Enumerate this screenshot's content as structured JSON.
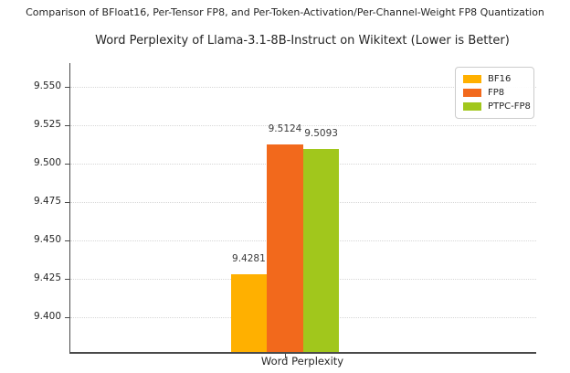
{
  "figure": {
    "suptitle": "Comparison of BFloat16, Per-Tensor FP8, and Per-Token-Activation/Per-Channel-Weight FP8 Quantization"
  },
  "chart_data": {
    "type": "bar",
    "title": "Word Perplexity of Llama-3.1-8B-Instruct on Wikitext (Lower is Better)",
    "suptitle": "Comparison of BFloat16, Per-Tensor FP8, and Per-Token-Activation/Per-Channel-Weight FP8 Quantization",
    "categories": [
      "Word Perplexity"
    ],
    "series": [
      {
        "name": "BF16",
        "values": [
          9.4281
        ],
        "value_label": "9.4281",
        "color": "#FFB000"
      },
      {
        "name": "FP8",
        "values": [
          9.5124
        ],
        "value_label": "9.5124",
        "color": "#F2691C"
      },
      {
        "name": "PTPC-FP8",
        "values": [
          9.5093
        ],
        "value_label": "9.5093",
        "color": "#A1C71C"
      }
    ],
    "xlabel": "Word Perplexity",
    "ylabel": "",
    "ylim": [
      9.3775,
      9.5655
    ],
    "yticks": [
      "9.400",
      "9.425",
      "9.450",
      "9.475",
      "9.500",
      "9.525",
      "9.550"
    ],
    "ytick_values": [
      9.4,
      9.425,
      9.45,
      9.475,
      9.5,
      9.525,
      9.55
    ],
    "grid": true,
    "grid_style": "dotted",
    "legend_position": "upper right",
    "legend": [
      "BF16",
      "FP8",
      "PTPC-FP8"
    ],
    "lower_is_better": true
  }
}
